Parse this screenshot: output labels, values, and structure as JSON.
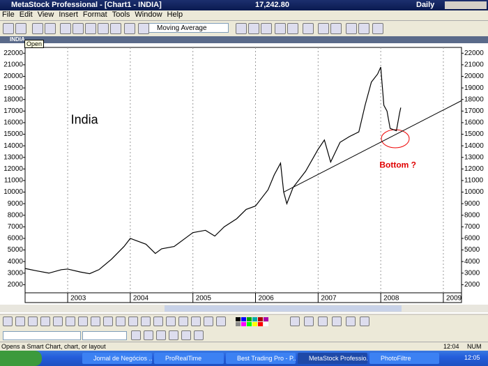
{
  "window": {
    "title": "MetaStock Professional - [Chart1 - INDIA]",
    "price": "17,242.80",
    "period": "Daily"
  },
  "menu": [
    "File",
    "Edit",
    "View",
    "Insert",
    "Format",
    "Tools",
    "Window",
    "Help"
  ],
  "toolbar": {
    "indicator": "Moving Average"
  },
  "tooltip": "Open",
  "chart_window": {
    "title": "INDIA"
  },
  "chart_data": {
    "type": "line",
    "x": [
      2002.32,
      2002.5,
      2002.7,
      2002.9,
      2003.0,
      2003.2,
      2003.35,
      2003.5,
      2003.7,
      2003.9,
      2004.0,
      2004.1,
      2004.25,
      2004.4,
      2004.5,
      2004.7,
      2004.9,
      2005.0,
      2005.2,
      2005.35,
      2005.5,
      2005.7,
      2005.85,
      2006.0,
      2006.2,
      2006.3,
      2006.4,
      2006.45,
      2006.5,
      2006.6,
      2006.8,
      2007.0,
      2007.1,
      2007.2,
      2007.35,
      2007.5,
      2007.65,
      2007.75,
      2007.85,
      2007.95,
      2008.0,
      2008.05,
      2008.1,
      2008.15,
      2008.25,
      2008.3,
      2008.32
    ],
    "series": [
      {
        "color": "#000000",
        "values": [
          3400,
          3200,
          3000,
          3300,
          3350,
          3100,
          2950,
          3300,
          4200,
          5300,
          6000,
          5800,
          5500,
          4700,
          5100,
          5300,
          6100,
          6500,
          6700,
          6200,
          7000,
          7700,
          8500,
          8800,
          10200,
          11500,
          12500,
          10000,
          9000,
          10400,
          11800,
          13700,
          14500,
          12600,
          14300,
          14800,
          15200,
          17500,
          19500,
          20200,
          20800,
          17500,
          17000,
          15500,
          15300,
          16800,
          17300
        ]
      }
    ],
    "trendline": {
      "x": [
        2006.45,
        2009.29
      ],
      "values": [
        10000,
        17900
      ]
    },
    "annotations": [
      {
        "text": "India",
        "x": 2003.05,
        "y": 16200
      },
      {
        "text": "Bottom ?",
        "x": 2007.98,
        "y": 12300
      }
    ],
    "xlim": [
      2002.32,
      2009.29
    ],
    "xticks": [
      2003,
      2004,
      2005,
      2006,
      2007,
      2008,
      2009
    ],
    "ylim": [
      1300,
      22500
    ],
    "yticks": [
      2000,
      3000,
      4000,
      5000,
      6000,
      7000,
      8000,
      9000,
      10000,
      11000,
      12000,
      13000,
      14000,
      15000,
      16000,
      17000,
      18000,
      19000,
      20000,
      21000,
      22000
    ],
    "x_grid": true
  },
  "status": {
    "text": "Opens a Smart Chart, chart, or layout",
    "time": "12:04",
    "num": "NUM"
  },
  "taskbar": {
    "items": [
      "Jornal de Negócios ...",
      "ProRealTime",
      "Best Trading Pro - P...",
      "MetaStock Professio...",
      "PhotoFiltre"
    ],
    "clock": "12:05"
  }
}
